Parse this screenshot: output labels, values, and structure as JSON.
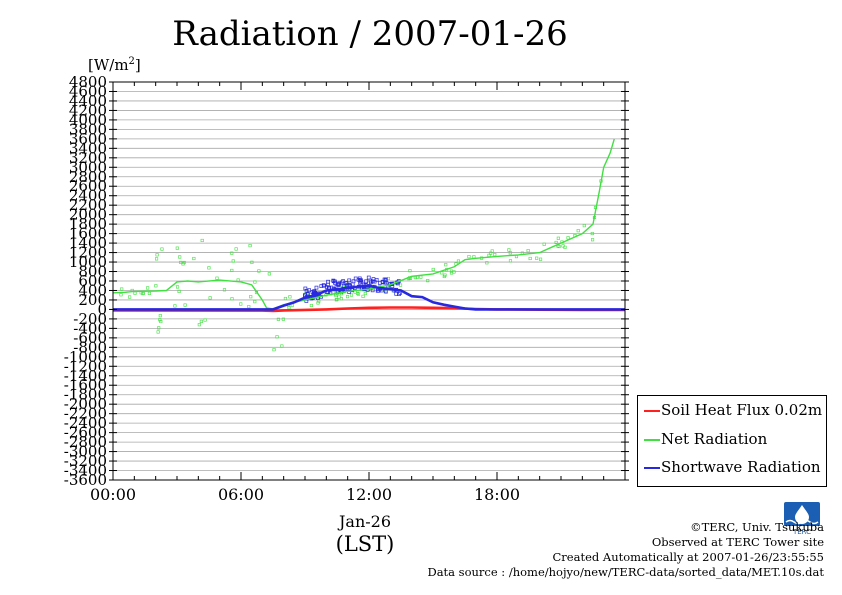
{
  "title": "Radiation / 2007-01-26",
  "unit_label_prefix": "[W/m",
  "unit_label_sup": "2",
  "unit_label_suffix": "]",
  "date_label": "Jan-26",
  "time_zone_label": "(LST)",
  "credits": {
    "line1": "©TERC, Univ. Tsukuba",
    "line2": "Observed at TERC Tower site",
    "line3": "Created Automatically at 2007-01-26/23:55:55",
    "line4": "Data source : /home/hojyo/new/TERC-data/sorted_data/MET.10s.dat"
  },
  "logo_text": "TERC",
  "chart_data": {
    "type": "line",
    "title": "Radiation / 2007-01-26",
    "ylabel": "[W/m2]",
    "xlabel": "Jan-26 (LST)",
    "ylim": [
      -3600,
      4800
    ],
    "xlim": [
      0,
      24
    ],
    "grid": true,
    "yticks": [
      4800,
      4600,
      4400,
      4200,
      4000,
      3800,
      3600,
      3400,
      3200,
      3000,
      2800,
      2600,
      2400,
      2200,
      2000,
      1800,
      1600,
      1400,
      1200,
      1000,
      800,
      600,
      400,
      200,
      0,
      -200,
      -400,
      -600,
      -800,
      -1000,
      -1200,
      -1400,
      -1600,
      -1800,
      -2000,
      -2200,
      -2400,
      -2600,
      -2800,
      -3000,
      -3200,
      -3400,
      -3600
    ],
    "xticks": [
      {
        "value": 0,
        "label": "00:00"
      },
      {
        "value": 6,
        "label": "06:00"
      },
      {
        "value": 12,
        "label": "12:00"
      },
      {
        "value": 18,
        "label": "18:00"
      }
    ],
    "legend_position": "bottom-right",
    "series": [
      {
        "name": "Soil Heat Flux 0.02m",
        "color": "#ff2020",
        "x": [
          0,
          7,
          7.5,
          8,
          9,
          10,
          11,
          12,
          13,
          14,
          15,
          16,
          17,
          18,
          20,
          22,
          24
        ],
        "y": [
          -20,
          -25,
          -30,
          -20,
          -10,
          0,
          20,
          35,
          40,
          40,
          35,
          25,
          10,
          0,
          -5,
          -10,
          -10
        ]
      },
      {
        "name": "Net Radiation",
        "color": "#40e040",
        "x": [
          0,
          0.5,
          1,
          2,
          2.5,
          3,
          3.5,
          4,
          5,
          6,
          6.5,
          7,
          7.2,
          7.5,
          8,
          9,
          10,
          11,
          12,
          13,
          14,
          15,
          16,
          16.5,
          17,
          18,
          19,
          20,
          20.5,
          21,
          22,
          22.5,
          22.8,
          23,
          23.3,
          23.5
        ],
        "y": [
          350,
          360,
          380,
          390,
          400,
          580,
          600,
          580,
          620,
          580,
          520,
          200,
          30,
          10,
          100,
          200,
          300,
          380,
          430,
          520,
          700,
          750,
          900,
          1050,
          1080,
          1120,
          1150,
          1200,
          1300,
          1400,
          1600,
          1800,
          2500,
          3000,
          3300,
          3600
        ]
      },
      {
        "name": "Shortwave Radiation",
        "color": "#2828e0",
        "x": [
          0,
          7.5,
          8,
          8.5,
          9,
          9.5,
          10,
          10.5,
          11,
          11.5,
          12,
          12.5,
          13,
          13.5,
          14,
          14.5,
          15,
          15.5,
          16,
          16.5,
          17,
          24
        ],
        "y": [
          0,
          0,
          80,
          150,
          250,
          300,
          400,
          420,
          450,
          480,
          500,
          450,
          430,
          400,
          280,
          260,
          150,
          100,
          60,
          20,
          0,
          0
        ]
      }
    ]
  }
}
